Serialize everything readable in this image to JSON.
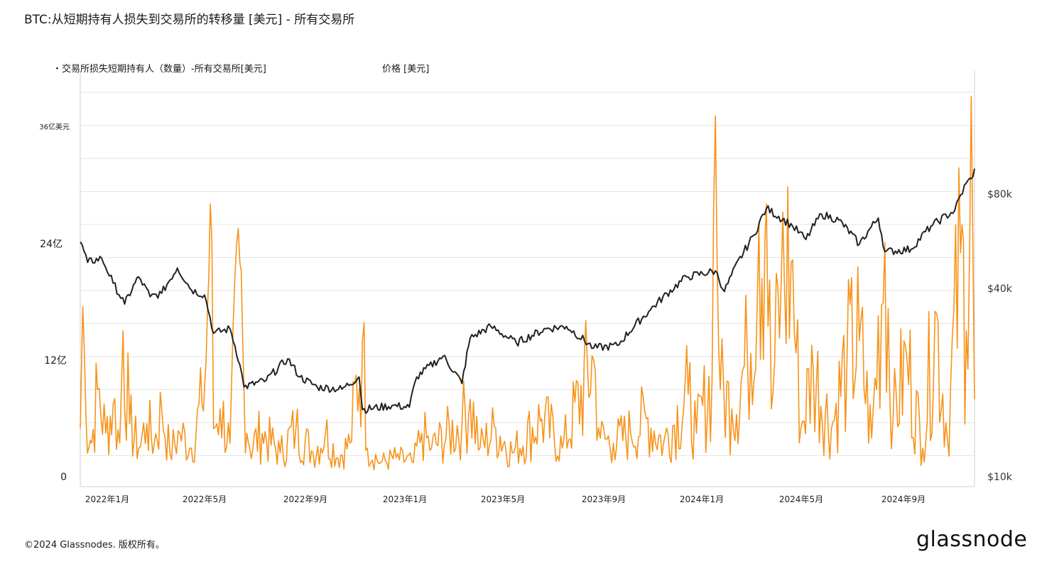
{
  "title": "BTC:从短期持有人损失到交易所的转移量 [美元] - 所有交易所",
  "legend": {
    "series1": "・交易所损失短期持有人（数量）-所有交易所[美元]",
    "series2": "价格 [美元]"
  },
  "y_left_labels": [
    "36亿美元",
    "24亿",
    "12亿",
    "0"
  ],
  "y_right_labels": [
    "$80k",
    "$40k",
    "$10k"
  ],
  "x_labels": [
    "2022年1月",
    "2022年5月",
    "2022年9月",
    "2023年1月",
    "2023年5月",
    "2023年9月",
    "2024年1月",
    "2024年5月",
    "2024年9月"
  ],
  "footer": "©2024 Glassnodes. 版权所有。",
  "brand": "glassnode",
  "colors": {
    "volume": "#f7931a",
    "price": "#222222",
    "grid": "#e6e6e6"
  },
  "chart_data": {
    "type": "line",
    "title": "BTC:从短期持有人损失到交易所的转移量 [美元] - 所有交易所",
    "x_range": [
      "2021-12-01",
      "2024-11-22"
    ],
    "y_left": {
      "unit": "USD",
      "range": [
        0,
        3600000000
      ],
      "ticks": [
        0,
        1200000000,
        2400000000,
        3600000000
      ]
    },
    "y_right": {
      "unit": "USD",
      "scale": "log",
      "range": [
        10000,
        110000
      ],
      "ticks": [
        10000,
        40000,
        80000
      ]
    },
    "series": [
      {
        "name": "交易所损失短期持有人（数量）-所有交易所[美元]",
        "axis": "left",
        "style": "line",
        "approximate": true,
        "points": [
          [
            "2021-12-01",
            500000000
          ],
          [
            "2021-12-04",
            1750000000
          ],
          [
            "2021-12-08",
            600000000
          ],
          [
            "2021-12-15",
            350000000
          ],
          [
            "2021-12-22",
            900000000
          ],
          [
            "2022-01-01",
            450000000
          ],
          [
            "2022-01-10",
            750000000
          ],
          [
            "2022-01-18",
            350000000
          ],
          [
            "2022-01-22",
            1500000000
          ],
          [
            "2022-01-30",
            550000000
          ],
          [
            "2022-02-10",
            300000000
          ],
          [
            "2022-02-20",
            550000000
          ],
          [
            "2022-03-01",
            350000000
          ],
          [
            "2022-03-10",
            700000000
          ],
          [
            "2022-03-20",
            250000000
          ],
          [
            "2022-04-01",
            450000000
          ],
          [
            "2022-04-15",
            300000000
          ],
          [
            "2022-04-28",
            750000000
          ],
          [
            "2022-05-03",
            1200000000
          ],
          [
            "2022-05-08",
            2800000000
          ],
          [
            "2022-05-12",
            500000000
          ],
          [
            "2022-05-20",
            700000000
          ],
          [
            "2022-06-01",
            350000000
          ],
          [
            "2022-06-13",
            2200000000
          ],
          [
            "2022-06-18",
            900000000
          ],
          [
            "2022-06-25",
            300000000
          ],
          [
            "2022-07-10",
            450000000
          ],
          [
            "2022-08-01",
            250000000
          ],
          [
            "2022-08-20",
            500000000
          ],
          [
            "2022-09-10",
            250000000
          ],
          [
            "2022-09-25",
            450000000
          ],
          [
            "2022-10-10",
            200000000
          ],
          [
            "2022-10-25",
            350000000
          ],
          [
            "2022-11-09",
            1400000000
          ],
          [
            "2022-11-15",
            300000000
          ],
          [
            "2022-12-01",
            150000000
          ],
          [
            "2022-12-20",
            200000000
          ],
          [
            "2023-01-10",
            150000000
          ],
          [
            "2023-01-20",
            450000000
          ],
          [
            "2023-02-01",
            300000000
          ],
          [
            "2023-03-10",
            550000000
          ],
          [
            "2023-03-20",
            800000000
          ],
          [
            "2023-04-01",
            300000000
          ],
          [
            "2023-04-20",
            500000000
          ],
          [
            "2023-05-10",
            250000000
          ],
          [
            "2023-06-15",
            600000000
          ],
          [
            "2023-07-10",
            300000000
          ],
          [
            "2023-08-17",
            1200000000
          ],
          [
            "2023-08-25",
            400000000
          ],
          [
            "2023-09-10",
            350000000
          ],
          [
            "2023-10-01",
            450000000
          ],
          [
            "2023-10-20",
            600000000
          ],
          [
            "2023-11-10",
            350000000
          ],
          [
            "2023-12-10",
            850000000
          ],
          [
            "2023-12-20",
            450000000
          ],
          [
            "2024-01-08",
            1000000000
          ],
          [
            "2024-01-12",
            3700000000
          ],
          [
            "2024-01-18",
            900000000
          ],
          [
            "2024-02-01",
            700000000
          ],
          [
            "2024-02-20",
            1200000000
          ],
          [
            "2024-03-05",
            2600000000
          ],
          [
            "2024-03-14",
            2800000000
          ],
          [
            "2024-03-20",
            700000000
          ],
          [
            "2024-04-01",
            2000000000
          ],
          [
            "2024-04-13",
            2200000000
          ],
          [
            "2024-04-25",
            500000000
          ],
          [
            "2024-05-10",
            1100000000
          ],
          [
            "2024-06-01",
            500000000
          ],
          [
            "2024-06-20",
            1200000000
          ],
          [
            "2024-07-05",
            1400000000
          ],
          [
            "2024-07-20",
            400000000
          ],
          [
            "2024-08-05",
            2400000000
          ],
          [
            "2024-08-15",
            600000000
          ],
          [
            "2024-09-01",
            1200000000
          ],
          [
            "2024-09-20",
            300000000
          ],
          [
            "2024-10-05",
            1700000000
          ],
          [
            "2024-10-20",
            400000000
          ],
          [
            "2024-11-05",
            2300000000
          ],
          [
            "2024-11-12",
            1500000000
          ],
          [
            "2024-11-18",
            3900000000
          ],
          [
            "2024-11-22",
            800000000
          ]
        ]
      },
      {
        "name": "价格 [美元]",
        "axis": "right",
        "style": "line",
        "approximate": true,
        "points": [
          [
            "2021-12-01",
            57000
          ],
          [
            "2021-12-10",
            49000
          ],
          [
            "2021-12-27",
            50500
          ],
          [
            "2022-01-10",
            42000
          ],
          [
            "2022-01-24",
            36000
          ],
          [
            "2022-02-10",
            44000
          ],
          [
            "2022-02-24",
            38000
          ],
          [
            "2022-03-10",
            39000
          ],
          [
            "2022-03-29",
            47000
          ],
          [
            "2022-04-15",
            40000
          ],
          [
            "2022-05-01",
            38500
          ],
          [
            "2022-05-12",
            29000
          ],
          [
            "2022-06-01",
            30000
          ],
          [
            "2022-06-13",
            23000
          ],
          [
            "2022-06-18",
            19500
          ],
          [
            "2022-07-15",
            20500
          ],
          [
            "2022-08-10",
            24000
          ],
          [
            "2022-08-25",
            21000
          ],
          [
            "2022-09-15",
            19500
          ],
          [
            "2022-10-15",
            19200
          ],
          [
            "2022-11-05",
            21000
          ],
          [
            "2022-11-09",
            16500
          ],
          [
            "2022-12-15",
            17000
          ],
          [
            "2023-01-05",
            16800
          ],
          [
            "2023-01-14",
            21000
          ],
          [
            "2023-02-15",
            24500
          ],
          [
            "2023-03-10",
            20000
          ],
          [
            "2023-03-20",
            28000
          ],
          [
            "2023-04-14",
            30500
          ],
          [
            "2023-05-15",
            27000
          ],
          [
            "2023-06-20",
            30000
          ],
          [
            "2023-07-15",
            30500
          ],
          [
            "2023-08-17",
            26000
          ],
          [
            "2023-09-15",
            26500
          ],
          [
            "2023-10-25",
            34500
          ],
          [
            "2023-12-08",
            44000
          ],
          [
            "2024-01-12",
            46000
          ],
          [
            "2024-01-23",
            39500
          ],
          [
            "2024-02-28",
            60000
          ],
          [
            "2024-03-14",
            73000
          ],
          [
            "2024-04-15",
            64000
          ],
          [
            "2024-05-01",
            58000
          ],
          [
            "2024-05-20",
            70000
          ],
          [
            "2024-06-10",
            67000
          ],
          [
            "2024-07-05",
            56000
          ],
          [
            "2024-07-28",
            68000
          ],
          [
            "2024-08-05",
            53000
          ],
          [
            "2024-09-06",
            54000
          ],
          [
            "2024-09-30",
            64000
          ],
          [
            "2024-10-29",
            72000
          ],
          [
            "2024-11-12",
            88000
          ],
          [
            "2024-11-18",
            91000
          ],
          [
            "2024-11-22",
            98000
          ]
        ]
      }
    ]
  }
}
